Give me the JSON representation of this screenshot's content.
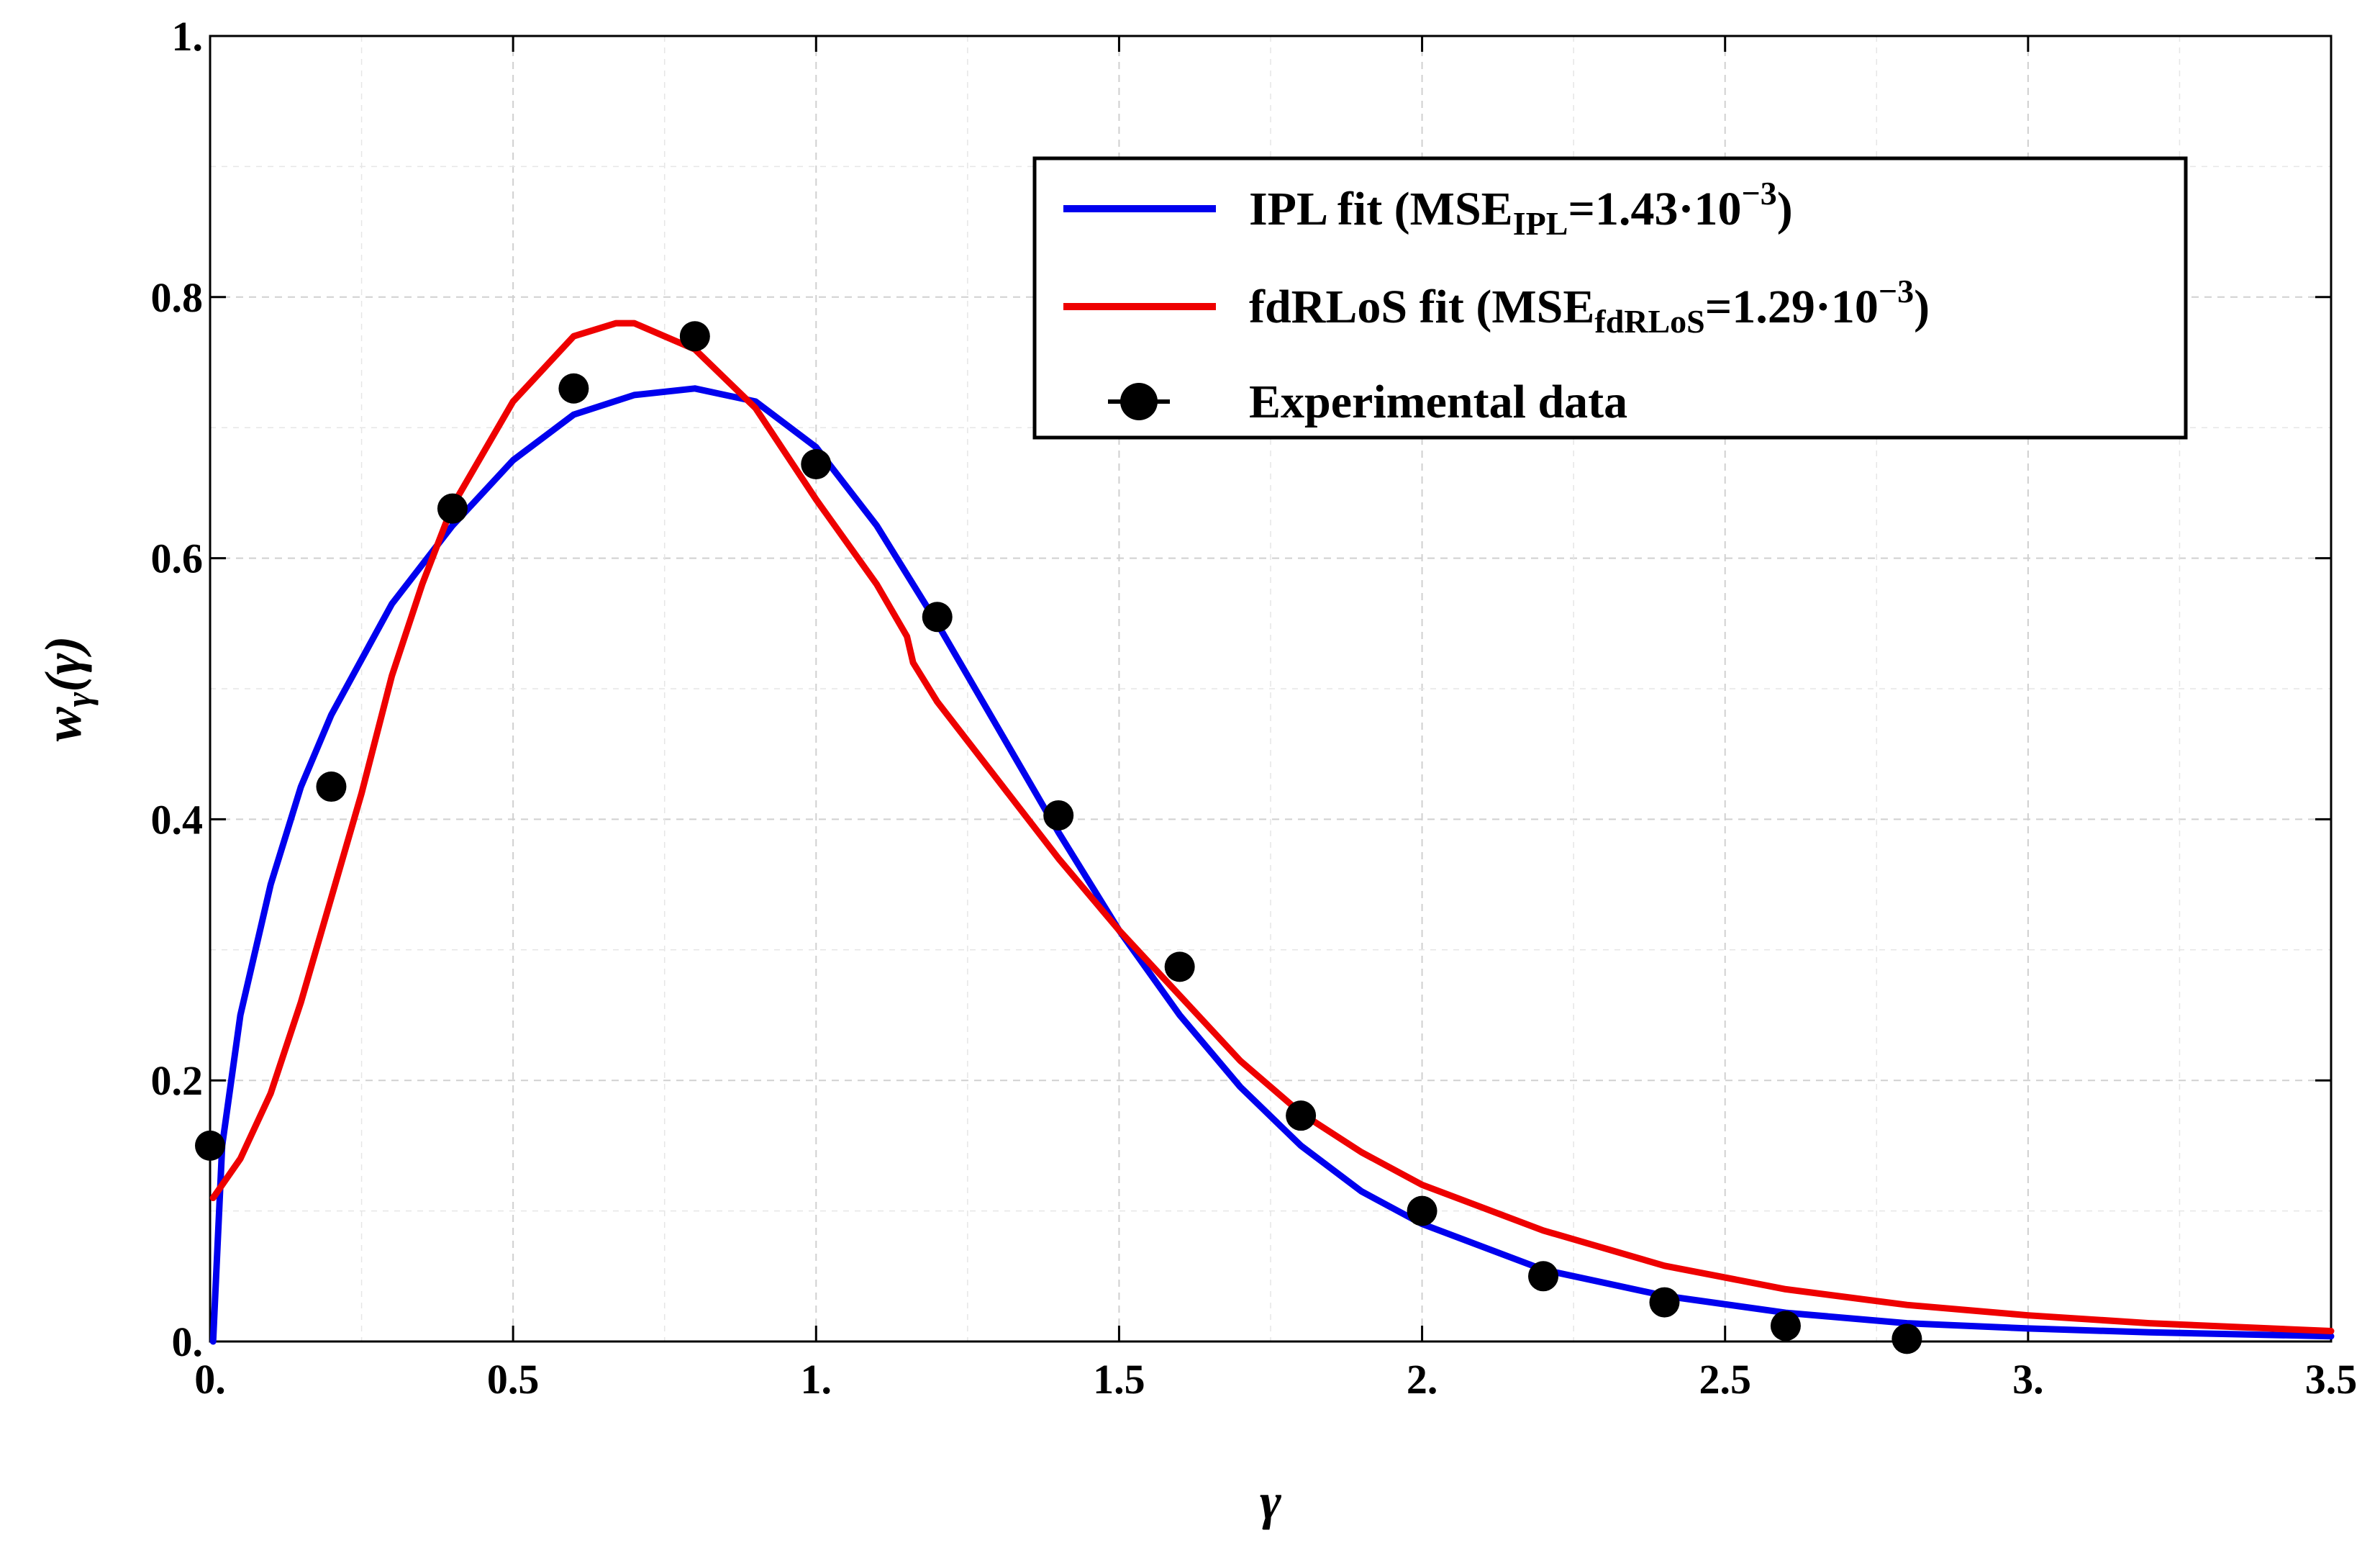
{
  "chart_data": {
    "type": "line",
    "xlabel": "γ",
    "ylabel": "w",
    "ylabel_sub": "γ",
    "ylabel_arg": "(γ)",
    "xlim": [
      0,
      3.5
    ],
    "ylim": [
      0,
      1
    ],
    "grid": true,
    "legend_position": "top-right",
    "x_ticks": [
      0,
      0.5,
      1,
      1.5,
      2,
      2.5,
      3,
      3.5
    ],
    "x_tick_labels": [
      "0.",
      "0.5",
      "1.",
      "1.5",
      "2.",
      "2.5",
      "3.",
      "3.5"
    ],
    "y_ticks": [
      0,
      0.2,
      0.4,
      0.6,
      0.8,
      1.0
    ],
    "y_tick_labels": [
      "0.",
      "0.2",
      "0.4",
      "0.6",
      "0.8",
      "1."
    ],
    "series": [
      {
        "name": "IPL fit",
        "legend_prefix": "IPL fit (MSE",
        "legend_sub": "IPL",
        "legend_value": "=1.43·10",
        "legend_exp": "−3",
        "legend_suffix": ")",
        "color": "#0000ee",
        "kind": "line",
        "x": [
          0.005,
          0.02,
          0.05,
          0.1,
          0.15,
          0.2,
          0.3,
          0.4,
          0.5,
          0.6,
          0.7,
          0.8,
          0.9,
          1.0,
          1.1,
          1.2,
          1.3,
          1.4,
          1.5,
          1.6,
          1.7,
          1.8,
          1.9,
          2.0,
          2.2,
          2.4,
          2.6,
          2.8,
          3.0,
          3.2,
          3.5
        ],
        "y": [
          0.0,
          0.15,
          0.25,
          0.35,
          0.425,
          0.48,
          0.565,
          0.625,
          0.675,
          0.71,
          0.725,
          0.73,
          0.72,
          0.685,
          0.625,
          0.55,
          0.47,
          0.39,
          0.315,
          0.25,
          0.195,
          0.15,
          0.115,
          0.09,
          0.055,
          0.035,
          0.022,
          0.014,
          0.01,
          0.007,
          0.004
        ]
      },
      {
        "name": "fdRLoS fit",
        "legend_prefix": "fdRLoS fit (MSE",
        "legend_sub": "fdRLoS",
        "legend_value": "=1.29·10",
        "legend_exp": "−3",
        "legend_suffix": ")",
        "color": "#ee0000",
        "kind": "line",
        "x": [
          0.005,
          0.05,
          0.1,
          0.15,
          0.2,
          0.25,
          0.3,
          0.35,
          0.4,
          0.5,
          0.6,
          0.67,
          0.7,
          0.8,
          0.9,
          1.0,
          1.1,
          1.15,
          1.16,
          1.2,
          1.3,
          1.4,
          1.5,
          1.6,
          1.7,
          1.8,
          1.9,
          2.0,
          2.2,
          2.4,
          2.6,
          2.8,
          3.0,
          3.2,
          3.5
        ],
        "y": [
          0.11,
          0.14,
          0.19,
          0.26,
          0.34,
          0.42,
          0.51,
          0.58,
          0.64,
          0.72,
          0.77,
          0.78,
          0.78,
          0.76,
          0.715,
          0.645,
          0.58,
          0.54,
          0.52,
          0.49,
          0.43,
          0.37,
          0.315,
          0.265,
          0.215,
          0.175,
          0.145,
          0.12,
          0.085,
          0.058,
          0.04,
          0.028,
          0.02,
          0.014,
          0.008
        ]
      },
      {
        "name": "Experimental data",
        "legend_prefix": "Experimental data",
        "color": "#000000",
        "kind": "scatter",
        "x": [
          0.0,
          0.2,
          0.4,
          0.6,
          0.8,
          1.0,
          1.2,
          1.4,
          1.6,
          1.8,
          2.0,
          2.2,
          2.4,
          2.6,
          2.8
        ],
        "y": [
          0.15,
          0.425,
          0.638,
          0.73,
          0.77,
          0.672,
          0.555,
          0.403,
          0.287,
          0.173,
          0.1,
          0.05,
          0.03,
          0.012,
          0.002
        ]
      }
    ]
  }
}
